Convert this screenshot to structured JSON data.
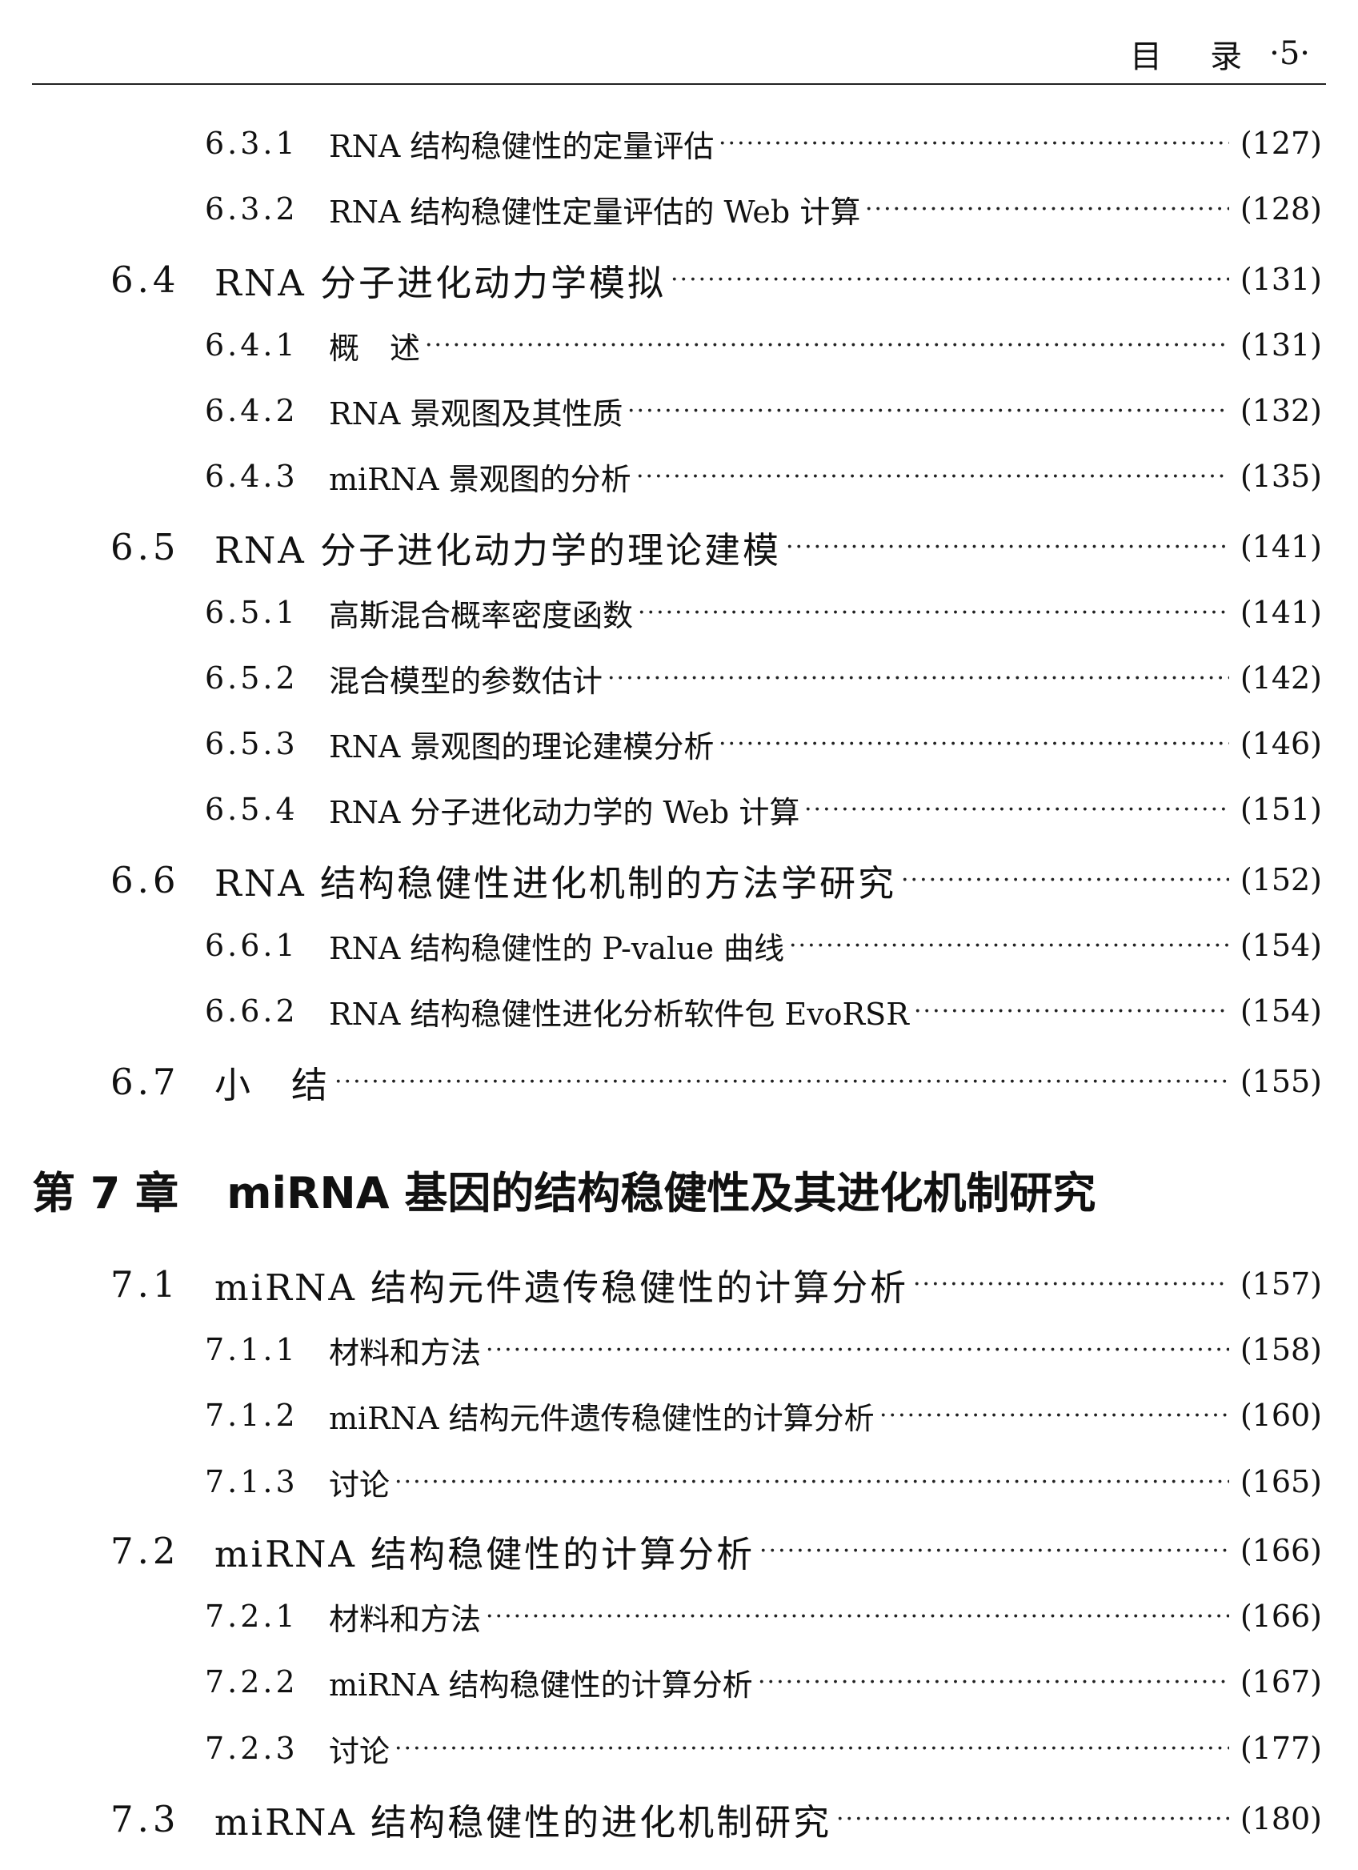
{
  "header": {
    "section": "目",
    "title": "录",
    "page": "·5·"
  },
  "rows_before": [
    {
      "level": "sub",
      "num": "6.3.1",
      "title": "RNA 结构稳健性的定量评估",
      "page": "(127)"
    },
    {
      "level": "sub",
      "num": "6.3.2",
      "title": "RNA 结构稳健性定量评估的 Web 计算",
      "page": "(128)"
    },
    {
      "level": "sec",
      "num": "6.4",
      "title": "RNA 分子进化动力学模拟",
      "page": "(131)"
    },
    {
      "level": "sub",
      "num": "6.4.1",
      "title": "概　述",
      "page": "(131)"
    },
    {
      "level": "sub",
      "num": "6.4.2",
      "title": "RNA 景观图及其性质",
      "page": "(132)"
    },
    {
      "level": "sub",
      "num": "6.4.3",
      "title": "miRNA 景观图的分析",
      "page": "(135)"
    },
    {
      "level": "sec",
      "num": "6.5",
      "title": "RNA 分子进化动力学的理论建模",
      "page": "(141)"
    },
    {
      "level": "sub",
      "num": "6.5.1",
      "title": "高斯混合概率密度函数",
      "page": "(141)"
    },
    {
      "level": "sub",
      "num": "6.5.2",
      "title": "混合模型的参数估计",
      "page": "(142)"
    },
    {
      "level": "sub",
      "num": "6.5.3",
      "title": "RNA 景观图的理论建模分析",
      "page": "(146)"
    },
    {
      "level": "sub",
      "num": "6.5.4",
      "title": "RNA 分子进化动力学的 Web 计算",
      "page": "(151)"
    },
    {
      "level": "sec",
      "num": "6.6",
      "title": "RNA 结构稳健性进化机制的方法学研究",
      "page": "(152)"
    },
    {
      "level": "sub",
      "num": "6.6.1",
      "title": "RNA 结构稳健性的 P-value 曲线",
      "page": "(154)"
    },
    {
      "level": "sub",
      "num": "6.6.2",
      "title": "RNA 结构稳健性进化分析软件包 EvoRSR",
      "page": "(154)"
    },
    {
      "level": "sec",
      "num": "6.7",
      "title": "小　结",
      "page": "(155)"
    }
  ],
  "chapter": {
    "num": "第 7 章",
    "title": "miRNA 基因的结构稳健性及其进化机制研究"
  },
  "rows_after": [
    {
      "level": "sec",
      "num": "7.1",
      "title": "miRNA 结构元件遗传稳健性的计算分析",
      "page": "(157)"
    },
    {
      "level": "sub",
      "num": "7.1.1",
      "title": "材料和方法",
      "page": "(158)"
    },
    {
      "level": "sub",
      "num": "7.1.2",
      "title": "miRNA 结构元件遗传稳健性的计算分析",
      "page": "(160)"
    },
    {
      "level": "sub",
      "num": "7.1.3",
      "title": "讨论",
      "page": "(165)"
    },
    {
      "level": "sec",
      "num": "7.2",
      "title": "miRNA 结构稳健性的计算分析",
      "page": "(166)"
    },
    {
      "level": "sub",
      "num": "7.2.1",
      "title": "材料和方法",
      "page": "(166)"
    },
    {
      "level": "sub",
      "num": "7.2.2",
      "title": "miRNA 结构稳健性的计算分析",
      "page": "(167)"
    },
    {
      "level": "sub",
      "num": "7.2.3",
      "title": "讨论",
      "page": "(177)"
    },
    {
      "level": "sec",
      "num": "7.3",
      "title": "miRNA 结构稳健性的进化机制研究",
      "page": "(180)"
    }
  ]
}
